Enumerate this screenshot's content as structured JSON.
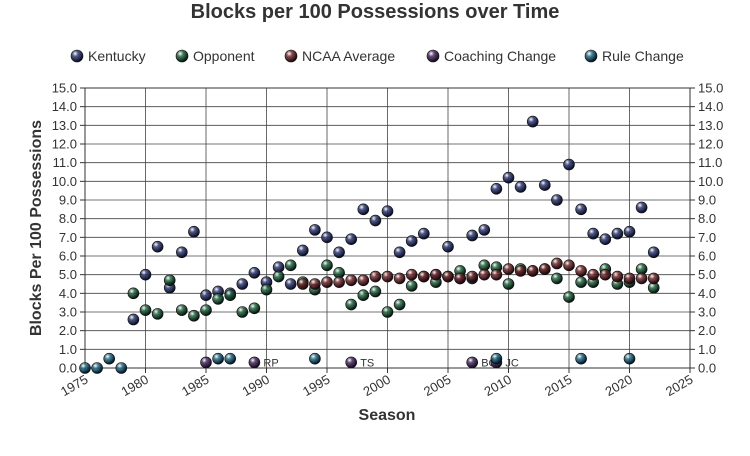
{
  "chart_data": {
    "type": "scatter",
    "title": "Blocks per 100 Possessions over Time",
    "xlabel": "Season",
    "ylabel": "Blocks Per 100 Possessions",
    "xlim": [
      1975,
      2025
    ],
    "ylim": [
      0,
      15
    ],
    "x_ticks": [
      "1975",
      "1980",
      "1985",
      "1990",
      "1995",
      "2000",
      "2005",
      "2010",
      "2015",
      "2020",
      "2025"
    ],
    "y_ticks": [
      "0.0",
      "1.0",
      "2.0",
      "3.0",
      "4.0",
      "5.0",
      "6.0",
      "7.0",
      "8.0",
      "9.0",
      "10.0",
      "11.0",
      "12.0",
      "13.0",
      "14.0",
      "15.0"
    ],
    "grid": true,
    "legend_position": "top",
    "series": [
      {
        "name": "Kentucky",
        "color": "#2d3a78",
        "points": [
          [
            1979,
            2.6
          ],
          [
            1980,
            5.0
          ],
          [
            1981,
            6.5
          ],
          [
            1982,
            4.3
          ],
          [
            1983,
            6.2
          ],
          [
            1984,
            7.3
          ],
          [
            1985,
            3.9
          ],
          [
            1986,
            4.1
          ],
          [
            1987,
            4.0
          ],
          [
            1988,
            4.5
          ],
          [
            1989,
            5.1
          ],
          [
            1990,
            4.6
          ],
          [
            1991,
            5.4
          ],
          [
            1992,
            4.5
          ],
          [
            1993,
            6.3
          ],
          [
            1994,
            7.4
          ],
          [
            1995,
            7.0
          ],
          [
            1996,
            6.2
          ],
          [
            1997,
            6.9
          ],
          [
            1998,
            8.5
          ],
          [
            1999,
            7.9
          ],
          [
            2000,
            8.4
          ],
          [
            2001,
            6.2
          ],
          [
            2002,
            6.8
          ],
          [
            2003,
            7.2
          ],
          [
            2004,
            5.0
          ],
          [
            2005,
            6.5
          ],
          [
            2006,
            4.8
          ],
          [
            2007,
            7.1
          ],
          [
            2008,
            7.4
          ],
          [
            2009,
            9.6
          ],
          [
            2010,
            10.2
          ],
          [
            2011,
            9.7
          ],
          [
            2012,
            13.2
          ],
          [
            2013,
            9.8
          ],
          [
            2014,
            9.0
          ],
          [
            2015,
            10.9
          ],
          [
            2016,
            8.5
          ],
          [
            2017,
            7.2
          ],
          [
            2018,
            6.9
          ],
          [
            2019,
            7.2
          ],
          [
            2020,
            7.3
          ],
          [
            2021,
            8.6
          ],
          [
            2022,
            6.2
          ]
        ]
      },
      {
        "name": "Opponent",
        "color": "#1f6b3e",
        "points": [
          [
            1979,
            4.0
          ],
          [
            1980,
            3.1
          ],
          [
            1981,
            2.9
          ],
          [
            1982,
            4.7
          ],
          [
            1983,
            3.1
          ],
          [
            1984,
            2.8
          ],
          [
            1985,
            3.1
          ],
          [
            1986,
            3.7
          ],
          [
            1987,
            3.9
          ],
          [
            1988,
            3.0
          ],
          [
            1989,
            3.2
          ],
          [
            1990,
            4.2
          ],
          [
            1991,
            4.9
          ],
          [
            1992,
            5.5
          ],
          [
            1993,
            4.6
          ],
          [
            1994,
            4.2
          ],
          [
            1995,
            5.5
          ],
          [
            1996,
            5.1
          ],
          [
            1997,
            3.4
          ],
          [
            1998,
            3.9
          ],
          [
            1999,
            4.1
          ],
          [
            2000,
            3.0
          ],
          [
            2001,
            3.4
          ],
          [
            2002,
            4.4
          ],
          [
            2003,
            4.9
          ],
          [
            2004,
            4.6
          ],
          [
            2005,
            4.9
          ],
          [
            2006,
            5.2
          ],
          [
            2007,
            4.8
          ],
          [
            2008,
            5.5
          ],
          [
            2009,
            5.4
          ],
          [
            2010,
            4.5
          ],
          [
            2011,
            5.3
          ],
          [
            2012,
            5.2
          ],
          [
            2013,
            5.3
          ],
          [
            2014,
            4.8
          ],
          [
            2015,
            3.8
          ],
          [
            2016,
            4.6
          ],
          [
            2017,
            4.6
          ],
          [
            2018,
            5.3
          ],
          [
            2019,
            4.5
          ],
          [
            2020,
            4.6
          ],
          [
            2021,
            5.3
          ],
          [
            2022,
            4.3
          ]
        ]
      },
      {
        "name": "NCAA Average",
        "color": "#7a2a2a",
        "points": [
          [
            1993,
            4.5
          ],
          [
            1994,
            4.5
          ],
          [
            1995,
            4.6
          ],
          [
            1996,
            4.6
          ],
          [
            1997,
            4.7
          ],
          [
            1998,
            4.7
          ],
          [
            1999,
            4.9
          ],
          [
            2000,
            4.9
          ],
          [
            2001,
            4.8
          ],
          [
            2002,
            5.0
          ],
          [
            2003,
            4.9
          ],
          [
            2004,
            5.0
          ],
          [
            2005,
            4.9
          ],
          [
            2006,
            4.8
          ],
          [
            2007,
            4.9
          ],
          [
            2008,
            5.0
          ],
          [
            2009,
            5.0
          ],
          [
            2010,
            5.3
          ],
          [
            2011,
            5.2
          ],
          [
            2012,
            5.2
          ],
          [
            2013,
            5.3
          ],
          [
            2014,
            5.6
          ],
          [
            2015,
            5.5
          ],
          [
            2016,
            5.2
          ],
          [
            2017,
            5.0
          ],
          [
            2018,
            5.0
          ],
          [
            2019,
            4.9
          ],
          [
            2020,
            4.8
          ],
          [
            2021,
            4.8
          ],
          [
            2022,
            4.8
          ]
        ]
      },
      {
        "name": "Coaching Change",
        "color": "#4a2a66",
        "points": [
          [
            1985,
            0.3,
            ""
          ],
          [
            1989,
            0.3,
            "RP"
          ],
          [
            1997,
            0.3,
            "TS"
          ],
          [
            2007,
            0.3,
            "BG"
          ],
          [
            2009,
            0.3,
            "JC"
          ]
        ]
      },
      {
        "name": "Rule Change",
        "color": "#1f6f8b",
        "points": [
          [
            1975,
            0.0
          ],
          [
            1976,
            0.0
          ],
          [
            1977,
            0.5
          ],
          [
            1978,
            0.0
          ],
          [
            1986,
            0.5
          ],
          [
            1987,
            0.5
          ],
          [
            1994,
            0.5
          ],
          [
            2009,
            0.5
          ],
          [
            2016,
            0.5
          ],
          [
            2020,
            0.5
          ]
        ]
      }
    ],
    "event_labels": [
      "",
      "RP",
      "TS",
      "BG",
      "JC"
    ]
  }
}
